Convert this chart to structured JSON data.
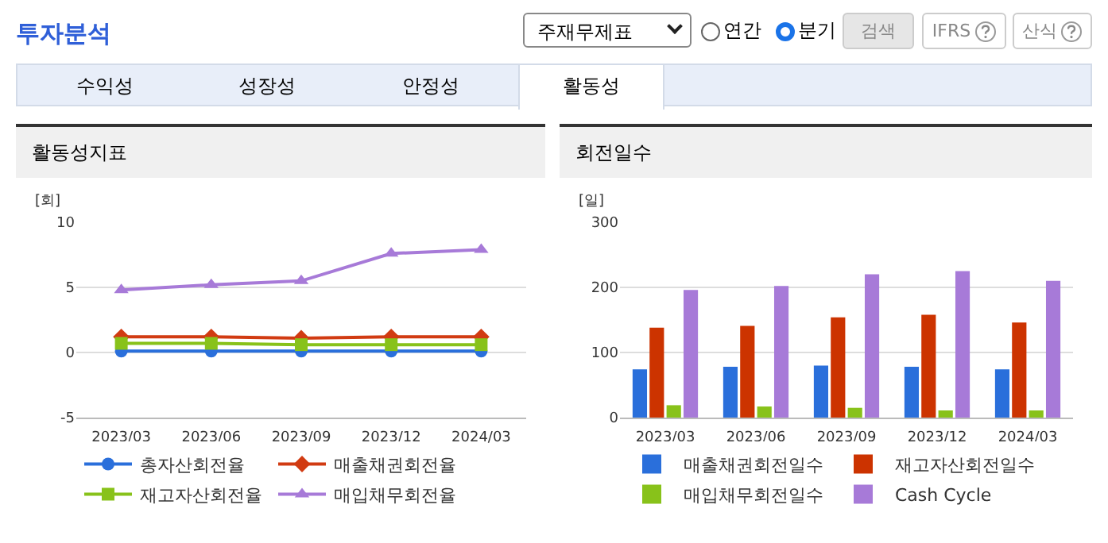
{
  "chart_data": [
    {
      "type": "other",
      "title": "투자분석",
      "annotations": [
        "주재무제표",
        "연간",
        "분기",
        "검색",
        "IFRS",
        "산식",
        "수익성",
        "성장성",
        "안정성",
        "활동성"
      ]
    },
    {
      "type": "line",
      "title": "활동성지표",
      "ylabel": "[회]",
      "categories": [
        "2023/03",
        "2023/06",
        "2023/09",
        "2023/12",
        "2024/03"
      ],
      "ylim": [
        -5,
        10
      ],
      "yticks": [
        -5,
        0,
        5,
        10
      ],
      "grid": "y",
      "legend": "bottom",
      "series": [
        {
          "name": "총자산회전율",
          "color": "#2a6fdb",
          "marker": "circle",
          "values": [
            0.1,
            0.1,
            0.1,
            0.1,
            0.1
          ]
        },
        {
          "name": "매출채권회전율",
          "color": "#d13b12",
          "marker": "diamond",
          "values": [
            1.2,
            1.2,
            1.1,
            1.2,
            1.2
          ]
        },
        {
          "name": "재고자산회전율",
          "color": "#88c21a",
          "marker": "square",
          "values": [
            0.7,
            0.7,
            0.6,
            0.6,
            0.6
          ]
        },
        {
          "name": "매입채무회전율",
          "color": "#a77ad8",
          "marker": "triangle",
          "values": [
            4.8,
            5.2,
            5.5,
            7.6,
            7.9
          ]
        }
      ]
    },
    {
      "type": "bar",
      "title": "회전일수",
      "ylabel": "[일]",
      "categories": [
        "2023/03",
        "2023/06",
        "2023/09",
        "2023/12",
        "2024/03"
      ],
      "ylim": [
        0,
        300
      ],
      "yticks": [
        0,
        100,
        200,
        300
      ],
      "grid": "y",
      "legend": "bottom",
      "series": [
        {
          "name": "매출채권회전일수",
          "color": "#2a6fdb",
          "values": [
            74,
            78,
            80,
            78,
            74
          ]
        },
        {
          "name": "재고자산회전일수",
          "color": "#cc3300",
          "values": [
            138,
            141,
            154,
            158,
            146
          ]
        },
        {
          "name": "매입채무회전일수",
          "color": "#88c21a",
          "values": [
            19,
            17,
            15,
            11,
            11
          ]
        },
        {
          "name": "Cash Cycle",
          "color": "#a77ad8",
          "values": [
            196,
            202,
            220,
            225,
            210
          ]
        }
      ]
    }
  ]
}
